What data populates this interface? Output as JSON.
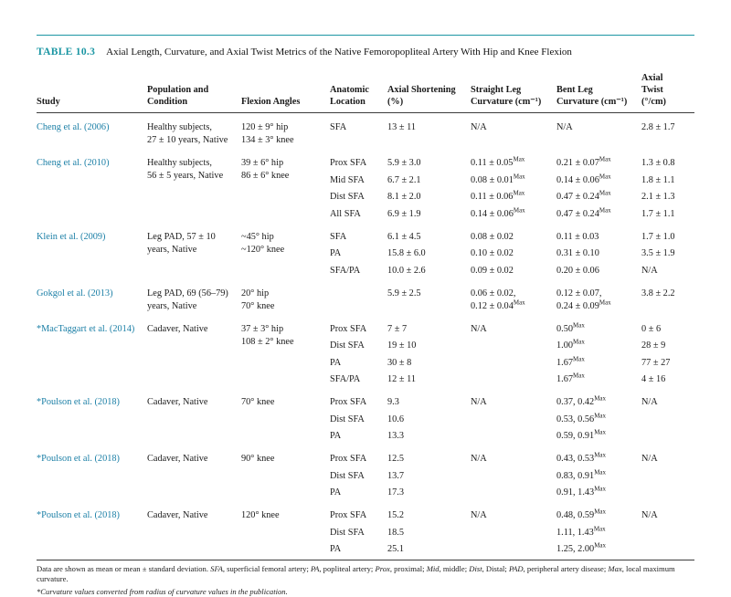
{
  "page": {
    "title_label": "TABLE 10.3",
    "title_text": "Axial Length, Curvature, and Axial Twist Metrics of the Native Femoropopliteal Artery With Hip and Knee Flexion"
  },
  "colors": {
    "accent_teal": "#1b96a3",
    "study_link_teal": "#1b7fa6",
    "rule_dark": "#3c3c3c"
  },
  "table": {
    "headers": [
      {
        "lines": [
          "Study"
        ]
      },
      {
        "lines": [
          "Population and",
          "Condition"
        ]
      },
      {
        "lines": [
          "Flexion Angles"
        ]
      },
      {
        "lines": [
          "Anatomic",
          "Location"
        ]
      },
      {
        "lines": [
          "Axial Shortening",
          "(%)"
        ]
      },
      {
        "lines": [
          "Straight Leg",
          "Curvature (cm⁻¹)"
        ]
      },
      {
        "lines": [
          "Bent Leg",
          "Curvature (cm⁻¹)"
        ]
      },
      {
        "lines": [
          "Axial",
          "Twist",
          "(°/cm)"
        ]
      }
    ],
    "groups": [
      {
        "study": "Cheng et al. (2006)",
        "population": [
          "Healthy subjects,",
          "27 ± 10 years, Native"
        ],
        "flexion": [
          "120 ± 9° hip",
          "134 ± 3° knee"
        ],
        "rows": [
          {
            "location": "SFA",
            "shortening": "13 ± 11",
            "straight": "N/A",
            "bent": "N/A",
            "twist": "2.8 ± 1.7"
          }
        ]
      },
      {
        "study": "Cheng et al. (2010)",
        "population": [
          "Healthy subjects,",
          "56 ± 5 years, Native"
        ],
        "flexion": [
          "39 ± 6° hip",
          "86 ± 6° knee"
        ],
        "rows": [
          {
            "location": "Prox SFA",
            "shortening": "5.9 ± 3.0",
            "straight": "0.11 ± 0.05^Max",
            "bent": "0.21 ± 0.07^Max",
            "twist": "1.3 ± 0.8"
          },
          {
            "location": "Mid SFA",
            "shortening": "6.7 ± 2.1",
            "straight": "0.08 ± 0.01^Max",
            "bent": "0.14 ± 0.06^Max",
            "twist": "1.8 ± 1.1"
          },
          {
            "location": "Dist SFA",
            "shortening": "8.1 ± 2.0",
            "straight": "0.11 ± 0.06^Max",
            "bent": "0.47 ± 0.24^Max",
            "twist": "2.1 ± 1.3"
          },
          {
            "location": "All SFA",
            "shortening": "6.9 ± 1.9",
            "straight": "0.14 ± 0.06^Max",
            "bent": "0.47 ± 0.24^Max",
            "twist": "1.7 ± 1.1"
          }
        ]
      },
      {
        "study": "Klein et al. (2009)",
        "population": [
          "Leg PAD, 57 ± 10",
          "years, Native"
        ],
        "flexion": [
          "~45° hip",
          "~120° knee"
        ],
        "rows": [
          {
            "location": "SFA",
            "shortening": "6.1 ± 4.5",
            "straight": "0.08 ± 0.02",
            "bent": "0.11 ± 0.03",
            "twist": "1.7 ± 1.0"
          },
          {
            "location": "PA",
            "shortening": "15.8 ± 6.0",
            "straight": "0.10 ± 0.02",
            "bent": "0.31 ± 0.10",
            "twist": "3.5 ± 1.9"
          },
          {
            "location": "SFA/PA",
            "shortening": "10.0 ± 2.6",
            "straight": "0.09 ± 0.02",
            "bent": "0.20 ± 0.06",
            "twist": "N/A"
          }
        ]
      },
      {
        "study": "Gokgol et al. (2013)",
        "population": [
          "Leg PAD, 69 (56–79)",
          "years, Native"
        ],
        "flexion": [
          "20° hip",
          "70° knee"
        ],
        "rows": [
          {
            "location": "",
            "shortening": "5.9 ± 2.5",
            "straight": [
              "0.06 ± 0.02,",
              "0.12 ± 0.04^Max"
            ],
            "bent": [
              "0.12 ± 0.07,",
              "0.24 ± 0.09^Max"
            ],
            "twist": "3.8 ± 2.2"
          }
        ]
      },
      {
        "study": "*MacTaggart et al. (2014)",
        "population": [
          "Cadaver, Native"
        ],
        "flexion": [
          "37 ± 3° hip",
          "108 ± 2° knee"
        ],
        "rows": [
          {
            "location": "Prox SFA",
            "shortening": "7 ± 7",
            "straight": "N/A",
            "bent": "0.50^Max",
            "twist": "0 ± 6"
          },
          {
            "location": "Dist SFA",
            "shortening": "19 ± 10",
            "straight": "",
            "bent": "1.00^Max",
            "twist": "28 ± 9"
          },
          {
            "location": "PA",
            "shortening": "30 ± 8",
            "straight": "",
            "bent": "1.67^Max",
            "twist": "77 ± 27"
          },
          {
            "location": "SFA/PA",
            "shortening": "12 ± 11",
            "straight": "",
            "bent": "1.67^Max",
            "twist": "4 ± 16"
          }
        ]
      },
      {
        "study": "*Poulson et al. (2018)",
        "population": [
          "Cadaver, Native"
        ],
        "flexion": [
          "70° knee"
        ],
        "rows": [
          {
            "location": "Prox SFA",
            "shortening": "9.3",
            "straight": "N/A",
            "bent": "0.37, 0.42^Max",
            "twist": "N/A"
          },
          {
            "location": "Dist SFA",
            "shortening": "10.6",
            "straight": "",
            "bent": "0.53, 0.56^Max",
            "twist": ""
          },
          {
            "location": "PA",
            "shortening": "13.3",
            "straight": "",
            "bent": "0.59, 0.91^Max",
            "twist": ""
          }
        ]
      },
      {
        "study": "*Poulson et al. (2018)",
        "population": [
          "Cadaver, Native"
        ],
        "flexion": [
          "90° knee"
        ],
        "rows": [
          {
            "location": "Prox SFA",
            "shortening": "12.5",
            "straight": "N/A",
            "bent": "0.43, 0.53^Max",
            "twist": "N/A"
          },
          {
            "location": "Dist SFA",
            "shortening": "13.7",
            "straight": "",
            "bent": "0.83, 0.91^Max",
            "twist": ""
          },
          {
            "location": "PA",
            "shortening": "17.3",
            "straight": "",
            "bent": "0.91, 1.43^Max",
            "twist": ""
          }
        ]
      },
      {
        "study": "*Poulson et al. (2018)",
        "population": [
          "Cadaver, Native"
        ],
        "flexion": [
          "120° knee"
        ],
        "rows": [
          {
            "location": "Prox SFA",
            "shortening": "15.2",
            "straight": "N/A",
            "bent": "0.48, 0.59^Max",
            "twist": "N/A"
          },
          {
            "location": "Dist SFA",
            "shortening": "18.5",
            "straight": "",
            "bent": "1.11, 1.43^Max",
            "twist": ""
          },
          {
            "location": "PA",
            "shortening": "25.1",
            "straight": "",
            "bent": "1.25, 2.00^Max",
            "twist": ""
          }
        ]
      }
    ]
  },
  "footnotes": {
    "note1_segments": [
      {
        "t": "Data are shown as mean or mean ± standard deviation. ",
        "i": false
      },
      {
        "t": "SFA",
        "i": true
      },
      {
        "t": ", superficial femoral artery; ",
        "i": false
      },
      {
        "t": "PA",
        "i": true
      },
      {
        "t": ", popliteal artery; ",
        "i": false
      },
      {
        "t": "Prox",
        "i": true
      },
      {
        "t": ", proximal; ",
        "i": false
      },
      {
        "t": "Mid",
        "i": true
      },
      {
        "t": ", middle; ",
        "i": false
      },
      {
        "t": "Dist",
        "i": true
      },
      {
        "t": ", Distal; ",
        "i": false
      },
      {
        "t": "PAD",
        "i": true
      },
      {
        "t": ", peripheral artery disease; ",
        "i": false
      },
      {
        "t": "Max",
        "i": true
      },
      {
        "t": ", local maximum curvature.",
        "i": false
      }
    ],
    "note2": "*Curvature values converted from radius of curvature values in the publication."
  }
}
